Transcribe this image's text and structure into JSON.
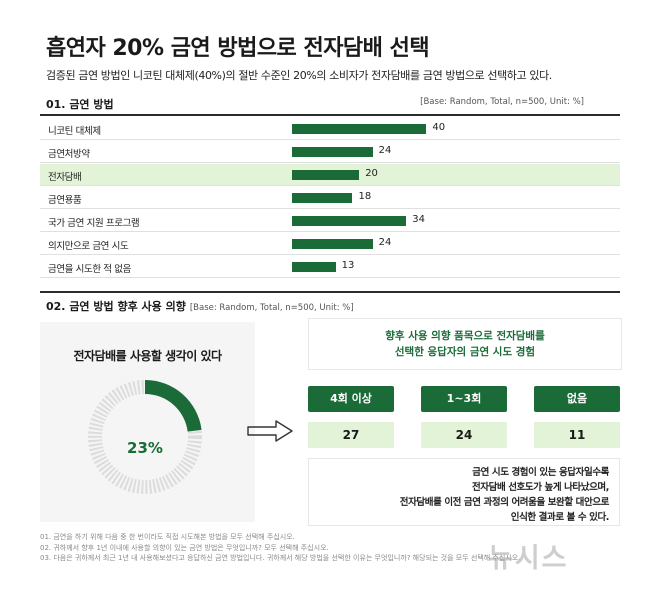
{
  "title": "흡연자 20% 금연 방법으로 전자담배 선택",
  "subtitle": "검증된 금연 방법인 니코틴 대체제(40%)의 절반 수준인 20%의 소비자가 전자담배를 금연 방법으로 선택하고 있다.",
  "section1": {
    "heading": "01. 금연 방법",
    "base": "[Base: Random, Total, n=500, Unit: %]"
  },
  "section2": {
    "heading": "02. 금연 방법 향후 사용 의향",
    "base": "[Base: Random, Total, n=500, Unit: %]"
  },
  "colors": {
    "accent": "#1b6b38",
    "highlight": "#e3f3d8",
    "donut_rest": "#dcdcdc"
  },
  "chart_data": [
    {
      "type": "bar",
      "orientation": "horizontal",
      "categories": [
        "니코틴 대체제",
        "금연처방약",
        "전자담배",
        "금연용품",
        "국가 금연 지원 프로그램",
        "의지만으로 금연 시도",
        "금연을 시도한 적 없음"
      ],
      "values": [
        40,
        24,
        20,
        18,
        34,
        24,
        13
      ],
      "highlighted_category": "전자담배",
      "xlim": [
        0,
        50
      ],
      "grid": false
    },
    {
      "type": "pie",
      "style": "donut",
      "title": "전자담배를 사용할 생각이 있다",
      "values": [
        23,
        77
      ],
      "display_label": "23%"
    },
    {
      "type": "table",
      "title_lines": [
        "향후 사용 의향 품목으로 전자담배를",
        "선택한 응답자의 금연 시도 경험"
      ],
      "columns": [
        "4회 이상",
        "1~3회",
        "없음"
      ],
      "values": [
        27,
        24,
        11
      ]
    }
  ],
  "conclusion": [
    "금연 시도 경험이 있는 응답자일수록",
    "전자담배 선호도가 높게 나타났으며,",
    "전자담배를 이전 금연 과정의 어려움을 보완할 대안으로",
    "인식한 결과로 볼 수 있다."
  ],
  "footnotes": [
    "01. 금연을 하기 위해 다음 중 한 번이라도 직접 시도해본 방법을 모두 선택해 주십시오.",
    "02. 귀하께서 향후 1년 이내에 사용할 의향이 있는 금연 방법은 무엇입니까? 모두 선택해 주십시오.",
    "03. 다음은 귀하께서 최근 1년 내 사용해보셨다고 응답하신 금연 방법입니다. 귀하께서 해당 방법을 선택한 이유는 무엇입니까? 해당되는 것을 모두 선택해 주십시오."
  ],
  "watermark": "뉴시스"
}
